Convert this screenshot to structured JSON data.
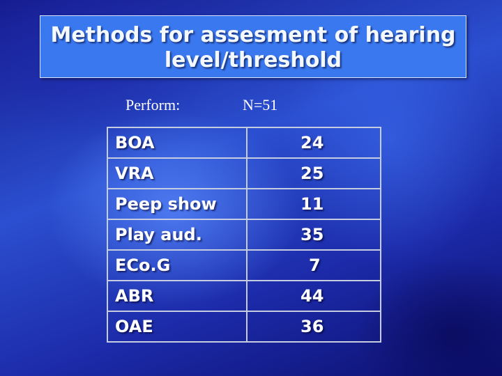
{
  "slide": {
    "title_line1": "Methods for assesment of hearing",
    "title_line2": "level/threshold",
    "perform_label": "Perform:",
    "n_label": "N=51"
  },
  "table": {
    "rows": [
      {
        "method": "BOA",
        "count": "24"
      },
      {
        "method": "VRA",
        "count": "25"
      },
      {
        "method": "Peep show",
        "count": "11"
      },
      {
        "method": "Play aud.",
        "count": "35"
      },
      {
        "method": "ECo.G",
        "count": "7"
      },
      {
        "method": "ABR",
        "count": "44"
      },
      {
        "method": "OAE",
        "count": "36"
      }
    ]
  }
}
